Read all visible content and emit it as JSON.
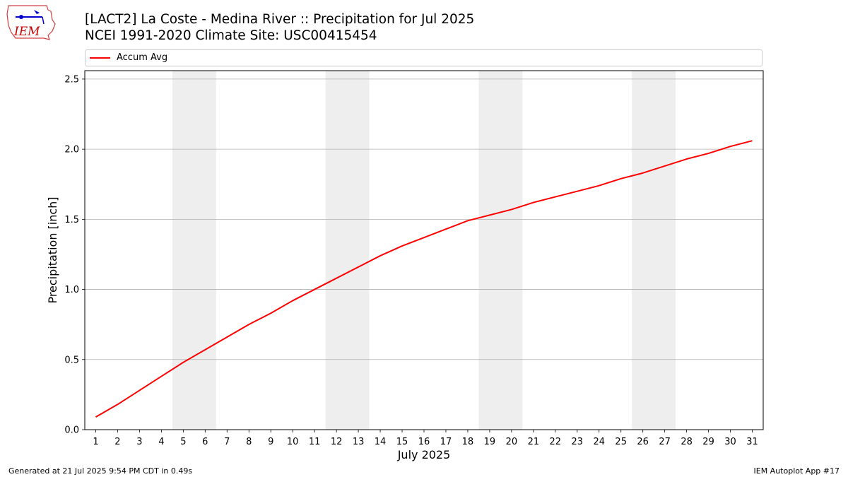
{
  "header": {
    "title_line1": "[LACT2] La Coste - Medina River :: Precipitation for Jul 2025",
    "title_line2": "NCEI 1991-2020 Climate Site: USC00415454"
  },
  "logo": {
    "text": "IEM",
    "icon": "iem-logo-icon"
  },
  "footer": {
    "left": "Generated at 21 Jul 2025 9:54 PM CDT in 0.49s",
    "right": "IEM Autoplot App #17"
  },
  "colors": {
    "series": "#ff0000",
    "weekend": "#eeeeee",
    "grid": "#b0b0b0",
    "logo": "#0000cc",
    "logo_text": "#cc0000"
  },
  "chart_data": {
    "type": "line",
    "title": "[LACT2] La Coste - Medina River :: Precipitation for Jul 2025",
    "subtitle": "NCEI 1991-2020 Climate Site: USC00415454",
    "xlabel": "July 2025",
    "ylabel": "Precipitation [inch]",
    "x": [
      1,
      2,
      3,
      4,
      5,
      6,
      7,
      8,
      9,
      10,
      11,
      12,
      13,
      14,
      15,
      16,
      17,
      18,
      19,
      20,
      21,
      22,
      23,
      24,
      25,
      26,
      27,
      28,
      29,
      30,
      31
    ],
    "series": [
      {
        "name": "Accum Avg",
        "color": "#ff0000",
        "values": [
          0.09,
          0.18,
          0.28,
          0.38,
          0.48,
          0.57,
          0.66,
          0.75,
          0.83,
          0.92,
          1.0,
          1.08,
          1.16,
          1.24,
          1.31,
          1.37,
          1.43,
          1.49,
          1.53,
          1.57,
          1.62,
          1.66,
          1.7,
          1.74,
          1.79,
          1.83,
          1.88,
          1.93,
          1.97,
          2.02,
          2.06
        ]
      }
    ],
    "xlim": [
      0.5,
      31.5
    ],
    "ylim": [
      0,
      2.56
    ],
    "yticks": [
      "0.0",
      "0.5",
      "1.0",
      "1.5",
      "2.0",
      "2.5"
    ],
    "weekend_bands": [
      [
        5,
        6
      ],
      [
        12,
        13
      ],
      [
        19,
        20
      ],
      [
        26,
        27
      ]
    ],
    "grid": "horizontal",
    "legend": {
      "entries": [
        "Accum Avg"
      ],
      "placement": "top"
    }
  }
}
